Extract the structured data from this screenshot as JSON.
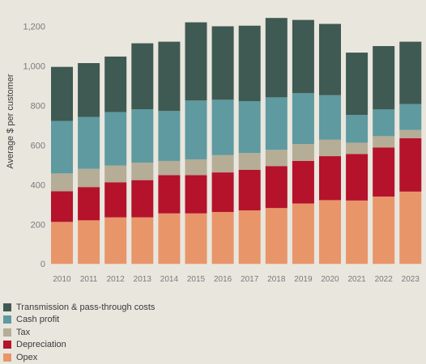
{
  "chart_data": {
    "type": "bar",
    "stacked": true,
    "ylabel": "Average $ per customer",
    "ylim": [
      -40,
      1300
    ],
    "yticks": [
      0,
      200,
      400,
      600,
      800,
      1000,
      1200
    ],
    "ytick_labels": [
      "0",
      "200",
      "400",
      "600",
      "800",
      "1,000",
      "1,200"
    ],
    "grid": false,
    "legend_position": "bottom-left",
    "categories": [
      "2010",
      "2011",
      "2012",
      "2013",
      "2014",
      "2015",
      "2016",
      "2017",
      "2018",
      "2019",
      "2020",
      "2021",
      "2022",
      "2023"
    ],
    "series": [
      {
        "name": "Opex",
        "color": "#e8956a",
        "values": [
          212,
          220,
          235,
          235,
          255,
          255,
          262,
          270,
          282,
          305,
          322,
          320,
          340,
          365
        ]
      },
      {
        "name": "Depreciation",
        "color": "#b5122b",
        "values": [
          155,
          168,
          177,
          188,
          193,
          193,
          200,
          205,
          212,
          215,
          222,
          235,
          248,
          270
        ]
      },
      {
        "name": "Tax",
        "color": "#b5ad96",
        "values": [
          90,
          92,
          85,
          88,
          72,
          80,
          87,
          85,
          82,
          85,
          83,
          57,
          57,
          42
        ]
      },
      {
        "name": "Cash profit",
        "color": "#5e9aa0",
        "values": [
          265,
          262,
          270,
          270,
          252,
          297,
          280,
          262,
          265,
          257,
          225,
          140,
          135,
          130
        ]
      },
      {
        "name": "Transmission & pass-through costs",
        "color": "#3f5a52",
        "values": [
          273,
          272,
          280,
          333,
          350,
          395,
          371,
          381,
          401,
          370,
          360,
          315,
          320,
          315
        ]
      }
    ]
  },
  "legend": [
    {
      "label": "Transmission & pass-through costs",
      "color": "#3f5a52"
    },
    {
      "label": "Cash profit",
      "color": "#5e9aa0"
    },
    {
      "label": "Tax",
      "color": "#b5ad96"
    },
    {
      "label": "Depreciation",
      "color": "#b5122b"
    },
    {
      "label": "Opex",
      "color": "#e8956a"
    }
  ]
}
